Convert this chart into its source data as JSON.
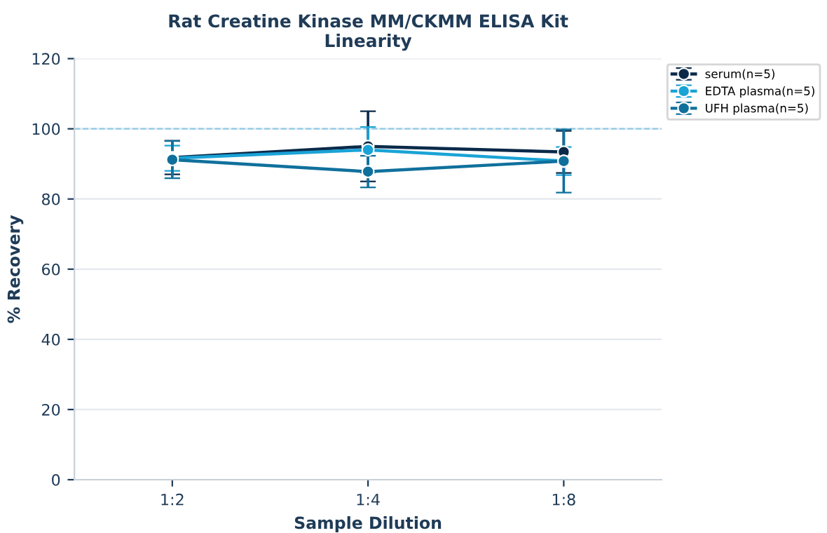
{
  "chart_data": {
    "type": "line",
    "title": "Rat Creatine Kinase MM/CKMM ELISA Kit\nLinearity",
    "xlabel": "Sample Dilution",
    "ylabel": "% Recovery",
    "categories": [
      "1:2",
      "1:4",
      "1:8"
    ],
    "series": [
      {
        "name": "serum(n=5)",
        "color": "#0b2a4a",
        "values": [
          91.8,
          95,
          93.4
        ],
        "errors": [
          4.8,
          10,
          6
        ]
      },
      {
        "name": "EDTA plasma(n=5)",
        "color": "#1aa3d6",
        "values": [
          91.6,
          94,
          90.8
        ],
        "errors": [
          3.6,
          6.5,
          4
        ]
      },
      {
        "name": "UFH plasma(n=5)",
        "color": "#10709c",
        "values": [
          91.2,
          87.8,
          90.8
        ],
        "errors": [
          5.3,
          4.5,
          9
        ]
      }
    ],
    "ylim": [
      0,
      120
    ],
    "yticks": [
      0,
      20,
      40,
      60,
      80,
      100,
      120
    ],
    "grid": "y",
    "legend": "top right",
    "marker": "circle",
    "line_style": "solid",
    "ref_lines": [
      {
        "axis": "y",
        "value": 100,
        "color": "#8ecae6",
        "line_style": "dashed"
      }
    ]
  }
}
